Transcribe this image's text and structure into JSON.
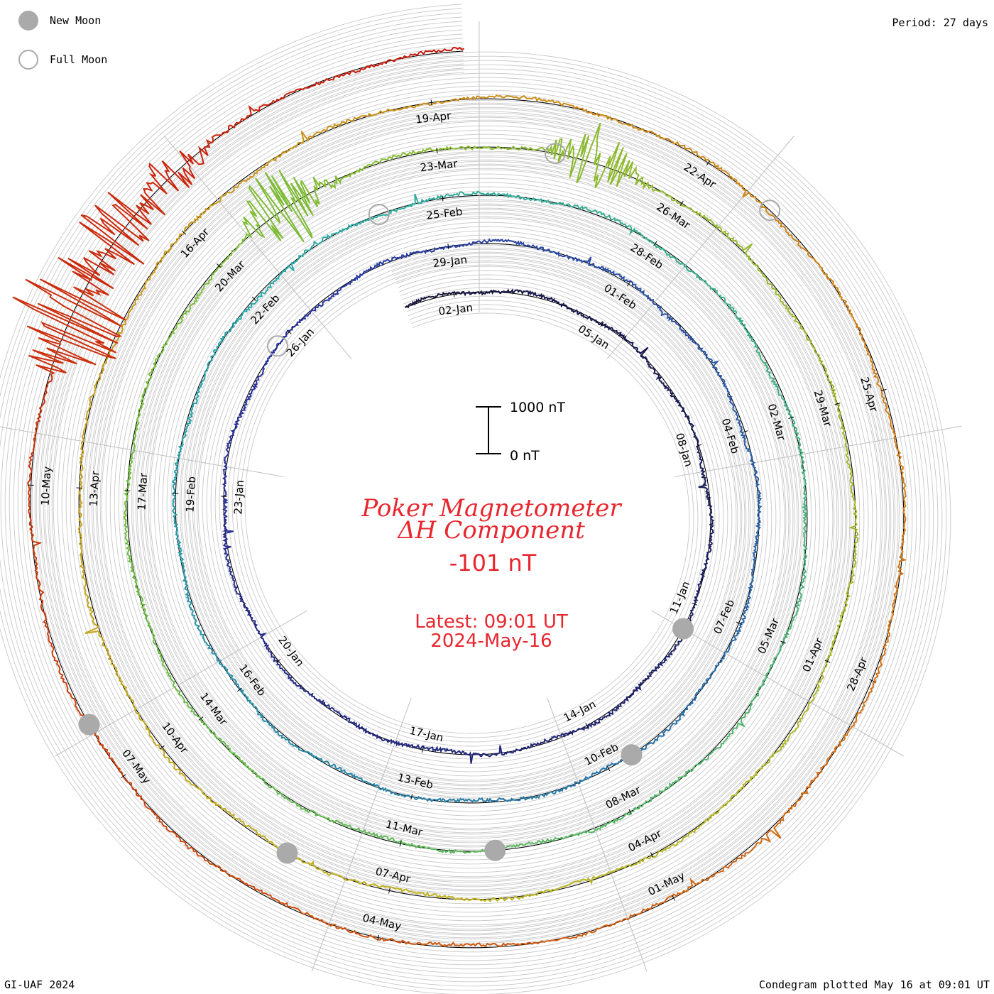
{
  "legend": {
    "new_moon_label": "New Moon",
    "full_moon_label": "Full Moon"
  },
  "period_label": "Period: 27 days",
  "footer": {
    "left": "GI-UAF 2024",
    "right": "Condegram plotted May 16 at 09:01 UT"
  },
  "scale_bar": {
    "top_label": "1000 nT",
    "bottom_label": "0 nT"
  },
  "center": {
    "title_line1": "Poker Magnetometer",
    "title_line2": "ΔH Component",
    "current_value": "-101 nT",
    "latest_line1": "Latest: 09:01 UT",
    "latest_line2": "2024-May-16"
  },
  "colors": {
    "title_red": "#e8262e",
    "moon_gray": "#aaaaaa",
    "grid_gray": "#c8c8c8"
  },
  "chart_data": {
    "type": "line",
    "description_kind": "condegram spiral",
    "period_days": 27,
    "start_date": "2024-01-01",
    "end_time": "2024-05-16 09:01 UT",
    "scale_nT": [
      0,
      1000
    ],
    "current_value_nT": -101,
    "date_labels": [
      {
        "text": "02-Jan",
        "day": 1
      },
      {
        "text": "05-Jan",
        "day": 4
      },
      {
        "text": "08-Jan",
        "day": 7
      },
      {
        "text": "11-Jan",
        "day": 10
      },
      {
        "text": "14-Jan",
        "day": 13
      },
      {
        "text": "17-Jan",
        "day": 16
      },
      {
        "text": "20-Jan",
        "day": 19
      },
      {
        "text": "23-Jan",
        "day": 22
      },
      {
        "text": "26-Jan",
        "day": 25
      },
      {
        "text": "29-Jan",
        "day": 28
      },
      {
        "text": "01-Feb",
        "day": 31
      },
      {
        "text": "04-Feb",
        "day": 34
      },
      {
        "text": "07-Feb",
        "day": 37
      },
      {
        "text": "10-Feb",
        "day": 40
      },
      {
        "text": "13-Feb",
        "day": 43
      },
      {
        "text": "16-Feb",
        "day": 46
      },
      {
        "text": "19-Feb",
        "day": 49
      },
      {
        "text": "22-Feb",
        "day": 52
      },
      {
        "text": "25-Feb",
        "day": 55
      },
      {
        "text": "28-Feb",
        "day": 58
      },
      {
        "text": "02-Mar",
        "day": 61
      },
      {
        "text": "05-Mar",
        "day": 64
      },
      {
        "text": "08-Mar",
        "day": 67
      },
      {
        "text": "11-Mar",
        "day": 70
      },
      {
        "text": "14-Mar",
        "day": 73
      },
      {
        "text": "17-Mar",
        "day": 76
      },
      {
        "text": "20-Mar",
        "day": 79
      },
      {
        "text": "23-Mar",
        "day": 82
      },
      {
        "text": "26-Mar",
        "day": 85
      },
      {
        "text": "29-Mar",
        "day": 88
      },
      {
        "text": "01-Apr",
        "day": 91
      },
      {
        "text": "04-Apr",
        "day": 94
      },
      {
        "text": "07-Apr",
        "day": 97
      },
      {
        "text": "10-Apr",
        "day": 100
      },
      {
        "text": "13-Apr",
        "day": 103
      },
      {
        "text": "16-Apr",
        "day": 106
      },
      {
        "text": "19-Apr",
        "day": 109
      },
      {
        "text": "22-Apr",
        "day": 112
      },
      {
        "text": "25-Apr",
        "day": 115
      },
      {
        "text": "28-Apr",
        "day": 118
      },
      {
        "text": "01-May",
        "day": 121
      },
      {
        "text": "04-May",
        "day": 124
      },
      {
        "text": "07-May",
        "day": 127
      },
      {
        "text": "10-May",
        "day": 130
      }
    ],
    "new_moons": [
      10.5,
      39.6,
      68.8,
      98.2,
      127.6
    ],
    "full_moons": [
      24.7,
      54.1,
      83.4,
      112.8
    ],
    "storm_events": [
      {
        "day": 79.8,
        "amplitude_nT": 780
      },
      {
        "day": 83.6,
        "amplitude_nT": 600
      },
      {
        "day": 131.4,
        "amplitude_nT": 1350
      },
      {
        "day": 132.3,
        "amplitude_nT": 700
      },
      {
        "day": 133.0,
        "amplitude_nT": 400
      }
    ]
  }
}
